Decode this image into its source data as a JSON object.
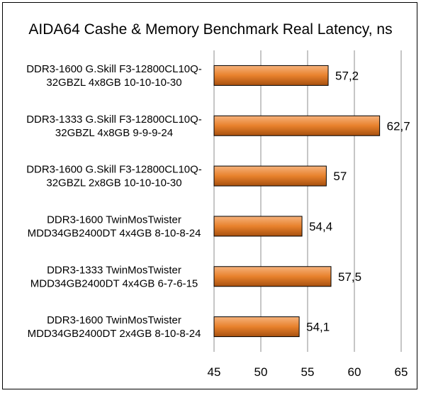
{
  "chart_data": {
    "type": "bar",
    "orientation": "horizontal",
    "title": "AIDA64 Cashe & Memory Benchmark Real Latency, ns",
    "xlabel": "",
    "ylabel": "",
    "xlim": [
      45,
      65
    ],
    "xticks": [
      45,
      50,
      55,
      60,
      65
    ],
    "xtick_labels": [
      "45",
      "50",
      "55",
      "60",
      "65"
    ],
    "grid": true,
    "legend": "none",
    "categories": [
      [
        "DDR3-1600 G.Skill F3-12800CL10Q-",
        "32GBZL 4x8GB 10-10-10-30"
      ],
      [
        "DDR3-1333 G.Skill F3-12800CL10Q-",
        "32GBZL 4x8GB 9-9-9-24"
      ],
      [
        "DDR3-1600 G.Skill F3-12800CL10Q-",
        "32GBZL 2x8GB 10-10-10-30"
      ],
      [
        "DDR3-1600 TwinMosTwister",
        "MDD34GB2400DT 4x4GB 8-10-8-24"
      ],
      [
        "DDR3-1333 TwinMosTwister",
        "MDD34GB2400DT 4x4GB 6-7-6-15"
      ],
      [
        "DDR3-1600 TwinMosTwister",
        "MDD34GB2400DT 2x4GB 8-10-8-24"
      ]
    ],
    "values": [
      57.2,
      62.7,
      57,
      54.4,
      57.5,
      54.1
    ],
    "value_labels": [
      "57,2",
      "62,7",
      "57",
      "54,4",
      "57,5",
      "54,1"
    ],
    "colors": {
      "bar_light": "#f6b27c",
      "bar_mid": "#e8812c",
      "bar_dark": "#a7500f",
      "bar_border": "#000000",
      "grid": "#8c8c8c"
    }
  }
}
